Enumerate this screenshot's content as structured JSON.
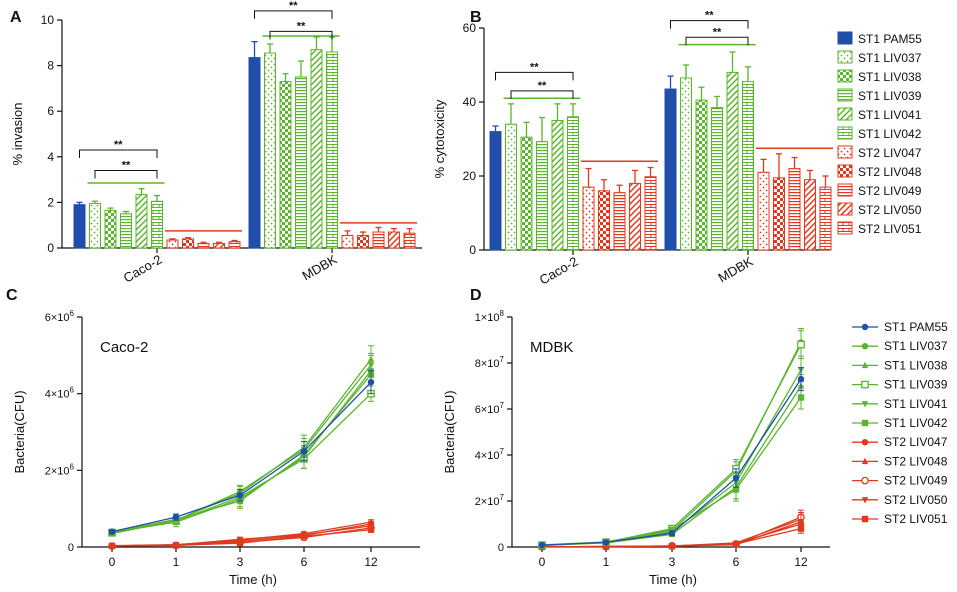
{
  "colors": {
    "blue": "#1f4fa8",
    "green": "#5bb52f",
    "red": "#e03a1e"
  },
  "legend": {
    "series": [
      {
        "name": "ST1 PAM55",
        "group": "blue",
        "pattern": "solid",
        "marker": "circle"
      },
      {
        "name": "ST1 LIV037",
        "group": "green",
        "pattern": "dots",
        "marker": "circle"
      },
      {
        "name": "ST1 LIV038",
        "group": "green",
        "pattern": "checker",
        "marker": "triangle"
      },
      {
        "name": "ST1 LIV039",
        "group": "green",
        "pattern": "hlines",
        "marker": "square-open"
      },
      {
        "name": "ST1 LIV041",
        "group": "green",
        "pattern": "diag",
        "marker": "triangle-down"
      },
      {
        "name": "ST1 LIV042",
        "group": "green",
        "pattern": "grid",
        "marker": "square"
      },
      {
        "name": "ST2 LIV047",
        "group": "red",
        "pattern": "dots",
        "marker": "circle"
      },
      {
        "name": "ST2 LIV048",
        "group": "red",
        "pattern": "checker",
        "marker": "triangle"
      },
      {
        "name": "ST2 LIV049",
        "group": "red",
        "pattern": "hlines",
        "marker": "circle-open"
      },
      {
        "name": "ST2 LIV050",
        "group": "red",
        "pattern": "diag",
        "marker": "triangle-down"
      },
      {
        "name": "ST2 LIV051",
        "group": "red",
        "pattern": "grid",
        "marker": "square"
      }
    ]
  },
  "chart_data": [
    {
      "panel": "A",
      "type": "bar",
      "ylabel": "% invasion",
      "ylim": [
        0,
        10
      ],
      "yticks": [
        0,
        2,
        4,
        6,
        8,
        10
      ],
      "categories": [
        "Caco-2",
        "MDBK"
      ],
      "values": [
        [
          1.9,
          1.95,
          1.65,
          1.5,
          2.35,
          2.05,
          0.35,
          0.4,
          0.2,
          0.2,
          0.28
        ],
        [
          8.35,
          8.55,
          7.3,
          7.5,
          8.7,
          8.6,
          0.55,
          0.55,
          0.7,
          0.7,
          0.65
        ]
      ],
      "errors": [
        [
          0.1,
          0.1,
          0.1,
          0.1,
          0.25,
          0.25,
          0.05,
          0.05,
          0.05,
          0.05,
          0.05
        ],
        [
          0.7,
          0.4,
          0.35,
          0.7,
          0.55,
          0.65,
          0.2,
          0.15,
          0.2,
          0.15,
          0.2
        ]
      ],
      "sig": [
        {
          "cat": 0,
          "from": 0,
          "to": 5,
          "y": 4.3,
          "label": "**"
        },
        {
          "cat": 0,
          "from": 1,
          "to": 5,
          "y": 3.4,
          "label": "**"
        },
        {
          "cat": 1,
          "from": 0,
          "to": 5,
          "y": 10.4,
          "label": "**"
        },
        {
          "cat": 1,
          "from": 1,
          "to": 5,
          "y": 9.5,
          "label": "**"
        }
      ],
      "group_lines": [
        {
          "cat": 0,
          "from": 1,
          "to": 5,
          "y": 2.85,
          "color": "green"
        },
        {
          "cat": 0,
          "from": 6,
          "to": 10,
          "y": 0.75,
          "color": "red"
        },
        {
          "cat": 1,
          "from": 1,
          "to": 5,
          "y": 9.3,
          "color": "green"
        },
        {
          "cat": 1,
          "from": 6,
          "to": 10,
          "y": 1.1,
          "color": "red"
        }
      ]
    },
    {
      "panel": "B",
      "type": "bar",
      "ylabel": "% cytotoxicity",
      "ylim": [
        0,
        60
      ],
      "yticks": [
        0,
        20,
        40,
        60
      ],
      "categories": [
        "Caco-2",
        "MDBK"
      ],
      "values": [
        [
          32,
          34,
          30.5,
          29.3,
          35,
          36,
          17,
          16,
          15.5,
          18,
          19.8
        ],
        [
          43.5,
          46.5,
          40.5,
          38.5,
          48,
          45.5,
          21,
          19.5,
          22,
          19,
          17
        ]
      ],
      "errors": [
        [
          1.5,
          5.5,
          4,
          6.5,
          4.5,
          3.5,
          5,
          3,
          2,
          3.5,
          2.5
        ],
        [
          3.5,
          3.5,
          3.5,
          3,
          5.5,
          4,
          3.5,
          6.5,
          3,
          2.5,
          3
        ]
      ],
      "sig": [
        {
          "cat": 0,
          "from": 0,
          "to": 5,
          "y": 48,
          "label": "**"
        },
        {
          "cat": 0,
          "from": 1,
          "to": 5,
          "y": 43,
          "label": "**"
        },
        {
          "cat": 1,
          "from": 0,
          "to": 5,
          "y": 62,
          "label": "**"
        },
        {
          "cat": 1,
          "from": 1,
          "to": 5,
          "y": 57.5,
          "label": "**"
        }
      ],
      "group_lines": [
        {
          "cat": 0,
          "from": 1,
          "to": 5,
          "y": 41,
          "color": "green"
        },
        {
          "cat": 0,
          "from": 6,
          "to": 10,
          "y": 24,
          "color": "red"
        },
        {
          "cat": 1,
          "from": 1,
          "to": 5,
          "y": 55.5,
          "color": "green"
        },
        {
          "cat": 1,
          "from": 6,
          "to": 10,
          "y": 27.5,
          "color": "red"
        }
      ]
    },
    {
      "panel": "C",
      "type": "line",
      "title": "Caco-2",
      "xlabel": "Time (h)",
      "ylabel": "Bacteria(CFU)",
      "x": [
        "0",
        "1",
        "3",
        "6",
        "12"
      ],
      "ylim": [
        0,
        6000000
      ],
      "ytick_values": [
        0,
        2000000,
        4000000,
        6000000
      ],
      "ytick_labels": [
        {
          "base": "0",
          "exp": ""
        },
        {
          "base": "2×10",
          "exp": "6"
        },
        {
          "base": "4×10",
          "exp": "6"
        },
        {
          "base": "6×10",
          "exp": "6"
        }
      ],
      "series": [
        {
          "name": "ST1 PAM55",
          "values": [
            400000,
            780000,
            1350000,
            2500000,
            4300000
          ],
          "err": [
            60000,
            80000,
            150000,
            250000,
            300000
          ]
        },
        {
          "name": "ST1 LIV037",
          "values": [
            380000,
            650000,
            1250000,
            2350000,
            4600000
          ],
          "err": [
            50000,
            120000,
            200000,
            300000,
            400000
          ]
        },
        {
          "name": "ST1 LIV038",
          "values": [
            360000,
            700000,
            1400000,
            2600000,
            4900000
          ],
          "err": [
            40000,
            100000,
            180000,
            320000,
            350000
          ]
        },
        {
          "name": "ST1 LIV039",
          "values": [
            370000,
            680000,
            1300000,
            2300000,
            4000000
          ],
          "err": [
            40000,
            90000,
            150000,
            250000,
            200000
          ]
        },
        {
          "name": "ST1 LIV041",
          "values": [
            350000,
            690000,
            1450000,
            2550000,
            4750000
          ],
          "err": [
            40000,
            90000,
            160000,
            280000,
            300000
          ]
        },
        {
          "name": "ST1 LIV042",
          "values": [
            390000,
            720000,
            1200000,
            2400000,
            4500000
          ],
          "err": [
            40000,
            100000,
            200000,
            350000,
            300000
          ]
        },
        {
          "name": "ST2 LIV047",
          "values": [
            30000,
            50000,
            150000,
            300000,
            600000
          ],
          "err": [
            10000,
            15000,
            30000,
            50000,
            70000
          ]
        },
        {
          "name": "ST2 LIV048",
          "values": [
            35000,
            60000,
            180000,
            350000,
            650000
          ],
          "err": [
            10000,
            15000,
            30000,
            50000,
            60000
          ]
        },
        {
          "name": "ST2 LIV049",
          "values": [
            25000,
            40000,
            120000,
            250000,
            500000
          ],
          "err": [
            10000,
            15000,
            30000,
            40000,
            60000
          ]
        },
        {
          "name": "ST2 LIV050",
          "values": [
            30000,
            55000,
            200000,
            320000,
            550000
          ],
          "err": [
            10000,
            15000,
            30000,
            50000,
            60000
          ]
        },
        {
          "name": "ST2 LIV051",
          "values": [
            28000,
            45000,
            100000,
            280000,
            450000
          ],
          "err": [
            10000,
            15000,
            30000,
            40000,
            50000
          ]
        }
      ]
    },
    {
      "panel": "D",
      "type": "line",
      "title": "MDBK",
      "xlabel": "Time (h)",
      "ylabel": "Bacteria(CFU)",
      "x": [
        "0",
        "1",
        "3",
        "6",
        "12"
      ],
      "ylim": [
        0,
        100000000
      ],
      "ytick_values": [
        0,
        20000000,
        40000000,
        60000000,
        80000000,
        100000000
      ],
      "ytick_labels": [
        {
          "base": "0",
          "exp": ""
        },
        {
          "base": "2×10",
          "exp": "7"
        },
        {
          "base": "4×10",
          "exp": "7"
        },
        {
          "base": "6×10",
          "exp": "7"
        },
        {
          "base": "8×10",
          "exp": "7"
        },
        {
          "base": "1×10",
          "exp": "8"
        }
      ],
      "series": [
        {
          "name": "ST1 PAM55",
          "values": [
            800000,
            2000000,
            6000000,
            30000000,
            73000000
          ],
          "err": [
            300000,
            500000,
            1000000,
            4000000,
            5000000
          ]
        },
        {
          "name": "ST1 LIV037",
          "values": [
            900000,
            2200000,
            7000000,
            33000000,
            89000000
          ],
          "err": [
            300000,
            500000,
            1000000,
            4000000,
            6000000
          ]
        },
        {
          "name": "ST1 LIV038",
          "values": [
            700000,
            1800000,
            5500000,
            26000000,
            70000000
          ],
          "err": [
            300000,
            500000,
            1000000,
            5000000,
            5000000
          ]
        },
        {
          "name": "ST1 LIV039",
          "values": [
            800000,
            2100000,
            8000000,
            34000000,
            88000000
          ],
          "err": [
            300000,
            500000,
            1000000,
            4000000,
            6000000
          ]
        },
        {
          "name": "ST1 LIV041",
          "values": [
            600000,
            1900000,
            6500000,
            28000000,
            77000000
          ],
          "err": [
            300000,
            500000,
            1000000,
            4000000,
            5000000
          ]
        },
        {
          "name": "ST1 LIV042",
          "values": [
            700000,
            2000000,
            7500000,
            25000000,
            65000000
          ],
          "err": [
            300000,
            500000,
            1000000,
            5000000,
            5000000
          ]
        },
        {
          "name": "ST2 LIV047",
          "values": [
            100000,
            200000,
            500000,
            1500000,
            10000000
          ],
          "err": [
            50000,
            100000,
            200000,
            500000,
            3000000
          ]
        },
        {
          "name": "ST2 LIV048",
          "values": [
            100000,
            200000,
            400000,
            1800000,
            12000000
          ],
          "err": [
            50000,
            100000,
            200000,
            500000,
            3000000
          ]
        },
        {
          "name": "ST2 LIV049",
          "values": [
            100000,
            200000,
            500000,
            1200000,
            13000000
          ],
          "err": [
            50000,
            100000,
            200000,
            500000,
            3000000
          ]
        },
        {
          "name": "ST2 LIV050",
          "values": [
            100000,
            200000,
            400000,
            1000000,
            11000000
          ],
          "err": [
            50000,
            100000,
            200000,
            500000,
            3000000
          ]
        },
        {
          "name": "ST2 LIV051",
          "values": [
            100000,
            150000,
            300000,
            1300000,
            8000000
          ],
          "err": [
            50000,
            100000,
            200000,
            500000,
            2000000
          ]
        }
      ]
    }
  ]
}
